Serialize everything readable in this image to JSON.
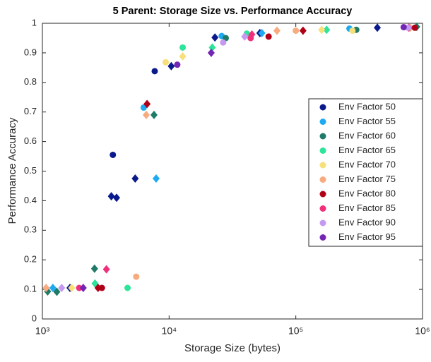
{
  "chart_data": {
    "type": "scatter",
    "title": "5 Parent: Storage Size vs. Performance Accuracy",
    "xlabel": "Storage Size (bytes)",
    "ylabel": "Performance Accuracy",
    "xscale": "log",
    "xlim": [
      1000,
      1000000
    ],
    "xticks": [
      {
        "value": 1000,
        "label": "10³"
      },
      {
        "value": 10000,
        "label": "10⁴"
      },
      {
        "value": 100000,
        "label": "10⁵"
      },
      {
        "value": 1000000,
        "label": "10⁶"
      }
    ],
    "ylim": [
      0,
      1
    ],
    "yticks": [
      0,
      0.1,
      0.2,
      0.3,
      0.4,
      0.5,
      0.6,
      0.7,
      0.8,
      0.9,
      1
    ],
    "legend": "right",
    "series": [
      {
        "name": "Env Factor 50",
        "color": "#0a1a8c",
        "x": [
          3600,
          7700,
          3500,
          3850,
          5400,
          10400,
          23000,
          52000,
          440000,
          1650
        ],
        "values": [
          0.555,
          0.838,
          0.415,
          0.41,
          0.475,
          0.855,
          0.952,
          0.967,
          0.985,
          0.105
        ],
        "markers": [
          "o",
          "o",
          "d",
          "d",
          "d",
          "d",
          "d",
          "d",
          "d",
          "d"
        ]
      },
      {
        "name": "Env Factor 55",
        "color": "#1eaaf0",
        "x": [
          6300,
          7900,
          26000,
          54000,
          265000,
          1210
        ],
        "values": [
          0.715,
          0.475,
          0.957,
          0.967,
          0.982,
          0.105
        ],
        "markers": [
          "o",
          "d",
          "o",
          "d",
          "o",
          "d"
        ]
      },
      {
        "name": "Env Factor 60",
        "color": "#1f7a68",
        "x": [
          7600,
          28000,
          2580,
          1100,
          1300,
          300000,
          900000
        ],
        "values": [
          0.69,
          0.95,
          0.17,
          0.093,
          0.092,
          0.978,
          0.988
        ],
        "markers": [
          "d",
          "o",
          "d",
          "d",
          "d",
          "o",
          "d"
        ]
      },
      {
        "name": "Env Factor 65",
        "color": "#2ee39a",
        "x": [
          12800,
          21900,
          175000,
          4700,
          2600,
          41000
        ],
        "values": [
          0.918,
          0.918,
          0.978,
          0.105,
          0.12,
          0.965
        ],
        "markers": [
          "o",
          "d",
          "d",
          "o",
          "d",
          "o"
        ]
      },
      {
        "name": "Env Factor 70",
        "color": "#f7df7a",
        "x": [
          12800,
          9400,
          160000,
          280000,
          1700
        ],
        "values": [
          0.888,
          0.868,
          0.978,
          0.975,
          0.105
        ],
        "markers": [
          "d",
          "o",
          "d",
          "o",
          "d"
        ]
      },
      {
        "name": "Env Factor 75",
        "color": "#f7ab7e",
        "x": [
          5500,
          6600,
          71000,
          100000,
          800000,
          1070
        ],
        "values": [
          0.143,
          0.69,
          0.975,
          0.975,
          0.985,
          0.105
        ],
        "markers": [
          "o",
          "d",
          "d",
          "o",
          "d",
          "d"
        ]
      },
      {
        "name": "Env Factor 80",
        "color": "#b00018",
        "x": [
          6700,
          61000,
          114000,
          870000,
          2750,
          2950
        ],
        "values": [
          0.727,
          0.955,
          0.975,
          0.985,
          0.105,
          0.105
        ],
        "markers": [
          "d",
          "o",
          "d",
          "o",
          "d",
          "o"
        ]
      },
      {
        "name": "Env Factor 85",
        "color": "#f0307a",
        "x": [
          3200,
          45000,
          44000,
          780000,
          1950
        ],
        "values": [
          0.168,
          0.962,
          0.95,
          0.985,
          0.105
        ],
        "markers": [
          "d",
          "d",
          "o",
          "d",
          "o"
        ]
      },
      {
        "name": "Env Factor 90",
        "color": "#c49af0",
        "x": [
          26700,
          39500,
          770000,
          1420
        ],
        "values": [
          0.935,
          0.955,
          0.985,
          0.105
        ],
        "markers": [
          "o",
          "d",
          "o",
          "d"
        ]
      },
      {
        "name": "Env Factor 95",
        "color": "#7326b3",
        "x": [
          21500,
          11600,
          710000,
          2100
        ],
        "values": [
          0.9,
          0.86,
          0.987,
          0.105
        ],
        "markers": [
          "d",
          "o",
          "o",
          "d"
        ]
      }
    ]
  }
}
